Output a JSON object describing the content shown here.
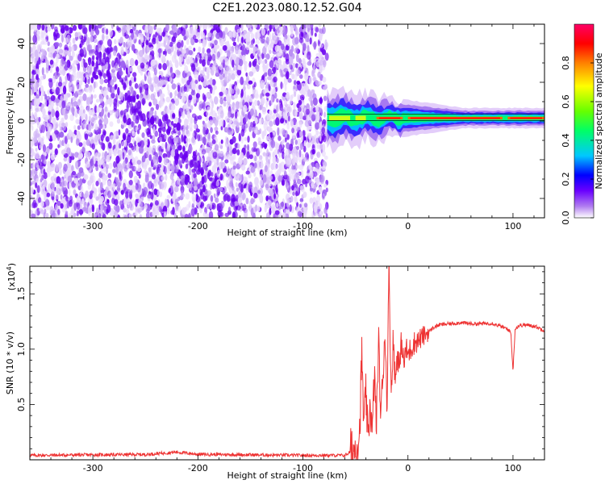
{
  "title": "C2E1.2023.080.12.52.G04",
  "colors": {
    "snr_line": "#ee3333",
    "spectrogram_dots": "#7a1cf0",
    "colorbar_stops": [
      "#ffffff",
      "#b07cf0",
      "#6a00ff",
      "#0000ff",
      "#00c8ff",
      "#00ff66",
      "#66ff00",
      "#ffff00",
      "#ff8000",
      "#ff0000",
      "#ff0066"
    ]
  },
  "chart_data": [
    {
      "type": "heatmap",
      "xlabel": "Height of straight line (km)",
      "ylabel": "Frequency (Hz)",
      "xlim": [
        -360,
        130
      ],
      "ylim": [
        -50,
        50
      ],
      "x_ticks": [
        -300,
        -200,
        -100,
        0,
        100
      ],
      "y_ticks": [
        -40,
        -20,
        0,
        20,
        40
      ],
      "noise_region_x": [
        -360,
        -77
      ],
      "noise_amplitude_range": [
        0.0,
        0.3
      ],
      "signal_band": {
        "x_range": [
          -77,
          130
        ],
        "frequency_center_hz": 1.5,
        "band_halfwidth_hz": [
          6,
          2
        ],
        "peak_amplitude": 0.9
      },
      "colorbar": {
        "label": "Normalized spectral amplitude",
        "range": [
          0,
          1
        ],
        "ticks": [
          "0.0",
          "0.2",
          "0.4",
          "0.6",
          "0.8"
        ]
      }
    },
    {
      "type": "line",
      "xlabel": "Height of straight line (km)",
      "ylabel": "SNR (10 * v/v)",
      "y_multiplier_label": "(x10",
      "y_multiplier_exp": "4",
      "xlim": [
        -360,
        130
      ],
      "ylim": [
        0,
        17500
      ],
      "x_ticks": [
        -300,
        -200,
        -100,
        0,
        100
      ],
      "y_ticks": [
        "0.5",
        "1.0",
        "1.5"
      ],
      "series": [
        {
          "x": [
            -360,
            -300,
            -250,
            -220,
            -200,
            -150,
            -100,
            -60,
            -50,
            -46,
            -44,
            -42,
            -40,
            -38,
            -36,
            -34,
            -32,
            -30,
            -28,
            -26,
            -24,
            -22,
            -20,
            -18,
            -16,
            -14,
            -12,
            -10,
            -8,
            -6,
            -4,
            -2,
            0,
            5,
            10,
            15,
            20,
            25,
            30,
            40,
            50,
            60,
            70,
            80,
            90,
            95,
            98,
            100,
            102,
            105,
            110,
            120,
            130
          ],
          "y": [
            400,
            450,
            480,
            700,
            500,
            450,
            400,
            400,
            1000,
            2500,
            9500,
            3000,
            6000,
            1500,
            5500,
            2000,
            8000,
            3000,
            11000,
            4000,
            7000,
            12000,
            5000,
            17500,
            6000,
            11000,
            7000,
            10000,
            8000,
            11000,
            8500,
            10000,
            9500,
            10500,
            10800,
            11200,
            11600,
            12000,
            12200,
            12300,
            12400,
            12300,
            12300,
            12350,
            12000,
            11800,
            11500,
            8000,
            11800,
            12100,
            12200,
            12100,
            11700
          ]
        }
      ]
    }
  ]
}
